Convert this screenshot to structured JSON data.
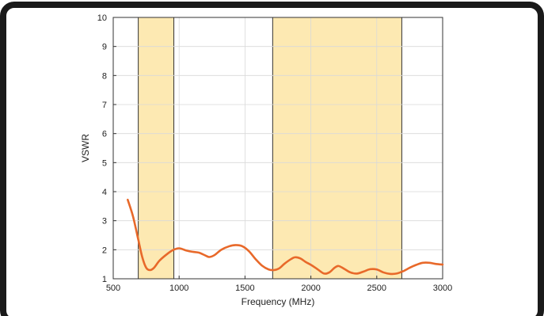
{
  "chart_data": {
    "type": "line",
    "title": "",
    "xlabel": "Frequency (MHz)",
    "ylabel": "VSWR",
    "xlim": [
      500,
      3000
    ],
    "ylim": [
      1,
      10
    ],
    "x_ticks": [
      500,
      1000,
      1500,
      2000,
      2500,
      3000
    ],
    "y_ticks": [
      1,
      2,
      3,
      4,
      5,
      6,
      7,
      8,
      9,
      10
    ],
    "x_tick_labels": [
      "500",
      "1000",
      "1500",
      "2000",
      "2500",
      "3000"
    ],
    "y_tick_labels": [
      "1",
      "2",
      "3",
      "4",
      "5",
      "6",
      "7",
      "8",
      "9",
      "10"
    ],
    "grid": true,
    "highlight_bands": [
      {
        "x_start": 690,
        "x_end": 960
      },
      {
        "x_start": 1710,
        "x_end": 2690
      }
    ],
    "series": [
      {
        "color": "#e8692a",
        "points": [
          [
            610,
            3.72
          ],
          [
            650,
            3.15
          ],
          [
            690,
            2.35
          ],
          [
            720,
            1.75
          ],
          [
            750,
            1.38
          ],
          [
            780,
            1.3
          ],
          [
            810,
            1.38
          ],
          [
            850,
            1.62
          ],
          [
            900,
            1.82
          ],
          [
            950,
            1.98
          ],
          [
            1000,
            2.05
          ],
          [
            1050,
            1.98
          ],
          [
            1100,
            1.93
          ],
          [
            1150,
            1.9
          ],
          [
            1200,
            1.8
          ],
          [
            1230,
            1.75
          ],
          [
            1270,
            1.82
          ],
          [
            1320,
            2.0
          ],
          [
            1380,
            2.12
          ],
          [
            1430,
            2.16
          ],
          [
            1480,
            2.12
          ],
          [
            1530,
            1.95
          ],
          [
            1580,
            1.68
          ],
          [
            1630,
            1.45
          ],
          [
            1680,
            1.32
          ],
          [
            1720,
            1.3
          ],
          [
            1760,
            1.36
          ],
          [
            1800,
            1.52
          ],
          [
            1850,
            1.68
          ],
          [
            1880,
            1.74
          ],
          [
            1920,
            1.7
          ],
          [
            1960,
            1.58
          ],
          [
            2000,
            1.48
          ],
          [
            2050,
            1.33
          ],
          [
            2100,
            1.18
          ],
          [
            2140,
            1.22
          ],
          [
            2180,
            1.38
          ],
          [
            2210,
            1.44
          ],
          [
            2250,
            1.35
          ],
          [
            2300,
            1.22
          ],
          [
            2350,
            1.18
          ],
          [
            2400,
            1.25
          ],
          [
            2450,
            1.33
          ],
          [
            2500,
            1.32
          ],
          [
            2550,
            1.22
          ],
          [
            2600,
            1.17
          ],
          [
            2650,
            1.18
          ],
          [
            2700,
            1.26
          ],
          [
            2750,
            1.38
          ],
          [
            2800,
            1.48
          ],
          [
            2850,
            1.55
          ],
          [
            2900,
            1.55
          ],
          [
            2950,
            1.51
          ],
          [
            3000,
            1.49
          ]
        ]
      }
    ]
  }
}
